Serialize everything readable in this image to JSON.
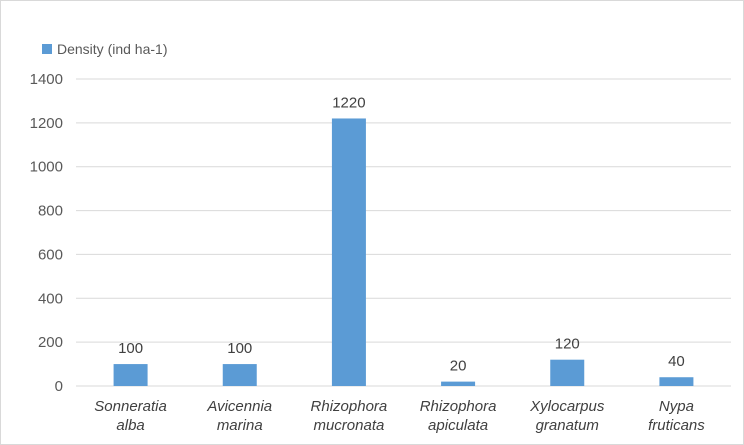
{
  "chart_data": {
    "type": "bar",
    "title": "",
    "xlabel": "",
    "ylabel": "",
    "legend": {
      "placement": "top-left",
      "label": "Density (ind ha-1)"
    },
    "categories": [
      [
        "Sonneratia",
        "alba"
      ],
      [
        "Avicennia",
        "marina"
      ],
      [
        "Rhizophora",
        "mucronata"
      ],
      [
        "Rhizophora",
        "apiculata"
      ],
      [
        "Xylocarpus",
        "granatum"
      ],
      [
        "Nypa",
        "fruticans"
      ]
    ],
    "series": [
      {
        "name": "Density (ind ha-1)",
        "values": [
          100,
          100,
          1220,
          20,
          120,
          40
        ]
      }
    ],
    "data_labels": [
      "100",
      "100",
      "1220",
      "20",
      "120",
      "40"
    ],
    "ylim": [
      0,
      1400
    ],
    "yticks": [
      0,
      200,
      400,
      600,
      800,
      1000,
      1200,
      1400
    ],
    "grid": true,
    "colors": {
      "bar": "#5b9bd5",
      "grid": "#d9d9d9",
      "axis": "#d9d9d9"
    }
  }
}
